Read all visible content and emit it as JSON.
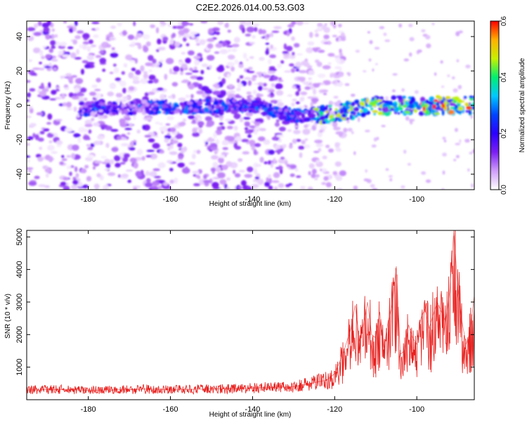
{
  "title": "C2E2.2026.014.00.53.G03",
  "colors": {
    "snr_line": "#e8201e",
    "spectrogram_background": "#ffffff",
    "colormap": [
      "#ffffff",
      "#cf9dfa",
      "#7b1ff2",
      "#2a00ff",
      "#0044ff",
      "#00c8ff",
      "#00f070",
      "#c8f000",
      "#ffb000",
      "#ff0000"
    ]
  },
  "chart_data": [
    {
      "type": "heatmap",
      "title": "C2E2.2026.014.00.53.G03",
      "xlabel": "Height of straight line (km)",
      "ylabel": "Frequency (Hz)",
      "xlim": [
        -195,
        -86
      ],
      "ylim": [
        -49,
        49
      ],
      "xticks": [
        -180,
        -160,
        -140,
        -120,
        -100
      ],
      "yticks": [
        -40,
        -20,
        0,
        20,
        40
      ],
      "colorbar": {
        "label": "Normalized spectral amplitude",
        "range": [
          0.0,
          0.6
        ],
        "ticks": [
          0.0,
          0.2,
          0.4,
          0.6
        ]
      },
      "features": {
        "signal_band_frequency_hz": [
          [
            -180,
            -2
          ],
          [
            -160,
            -1
          ],
          [
            -140,
            0
          ],
          [
            -130,
            -6
          ],
          [
            -120,
            -5
          ],
          [
            -110,
            0
          ],
          [
            -100,
            0
          ],
          [
            -88,
            0
          ]
        ],
        "noise_region_end_km": -124,
        "peak_amplitude": 0.6
      },
      "grid": false
    },
    {
      "type": "line",
      "xlabel": "Height of straight line (km)",
      "ylabel": "SNR (10 * v/v)",
      "xlim": [
        -195,
        -86
      ],
      "ylim": [
        0,
        5200
      ],
      "xticks": [
        -180,
        -160,
        -140,
        -120,
        -100
      ],
      "yticks": [
        1000,
        2000,
        3000,
        4000,
        5000
      ],
      "series": [
        {
          "x": [
            -195,
            -190,
            -185,
            -180,
            -175,
            -170,
            -165,
            -160,
            -155,
            -150,
            -145,
            -140,
            -135,
            -130,
            -126,
            -122,
            -120,
            -118,
            -117,
            -116,
            -115,
            -114,
            -113,
            -112,
            -111,
            -110,
            -109,
            -108,
            -107,
            -106,
            -105,
            -104,
            -103,
            -102,
            -101,
            -100,
            -99,
            -98,
            -97,
            -96,
            -95,
            -94,
            -93,
            -92,
            -91,
            -90,
            -89,
            -88,
            -87,
            -86
          ],
          "y": [
            300,
            310,
            320,
            290,
            300,
            310,
            330,
            300,
            320,
            330,
            340,
            360,
            380,
            400,
            500,
            600,
            800,
            1400,
            1800,
            2200,
            2900,
            1800,
            2300,
            3000,
            2000,
            1900,
            2700,
            1600,
            2400,
            2900,
            4100,
            1400,
            1500,
            2300,
            1900,
            1700,
            2500,
            2800,
            2200,
            2600,
            3000,
            2700,
            2400,
            3300,
            5200,
            3400,
            2400,
            1700,
            2100,
            3200
          ]
        }
      ],
      "grid": false
    }
  ]
}
